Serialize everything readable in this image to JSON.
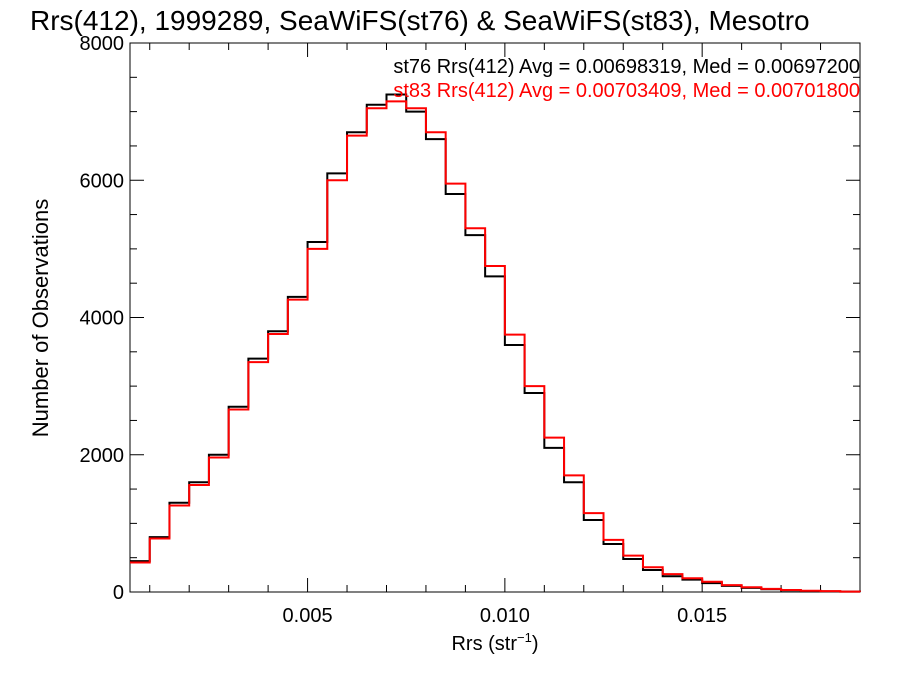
{
  "chart_data": {
    "type": "line",
    "title": "Rrs(412), 1999289, SeaWiFS(st76) & SeaWiFS(st83), Mesotro",
    "xlabel": "Rrs (str",
    "xlabel_sup": "−1",
    "xlabel_close": ")",
    "ylabel": "Number of Observations",
    "xlim": [
      0.0005,
      0.019
    ],
    "ylim": [
      0,
      8000
    ],
    "xticks": [
      0.005,
      0.01,
      0.015
    ],
    "xtick_labels": [
      "0.005",
      "0.010",
      "0.015"
    ],
    "yticks": [
      0,
      2000,
      4000,
      6000,
      8000
    ],
    "ytick_labels": [
      "0",
      "2000",
      "4000",
      "6000",
      "8000"
    ],
    "grid": false,
    "legend_position": "top-right",
    "annotations": [
      "st76 Rrs(412) Avg = 0.00698319, Med = 0.00697200",
      "st83 Rrs(412) Avg = 0.00703409, Med = 0.00701800"
    ],
    "series": [
      {
        "name": "st76",
        "color": "#000000",
        "x": [
          0.0005,
          0.001,
          0.0015,
          0.002,
          0.0025,
          0.003,
          0.0035,
          0.004,
          0.0045,
          0.005,
          0.0055,
          0.006,
          0.0065,
          0.007,
          0.0075,
          0.008,
          0.0085,
          0.009,
          0.0095,
          0.01,
          0.0105,
          0.011,
          0.0115,
          0.012,
          0.0125,
          0.013,
          0.0135,
          0.014,
          0.0145,
          0.015,
          0.0155,
          0.016,
          0.0165,
          0.017,
          0.0175,
          0.018,
          0.0185,
          0.019
        ],
        "values": [
          450,
          800,
          1300,
          1600,
          2000,
          2700,
          3400,
          3800,
          4300,
          5100,
          6100,
          6700,
          7100,
          7250,
          7000,
          6600,
          5800,
          5200,
          4600,
          3600,
          2900,
          2100,
          1600,
          1050,
          700,
          480,
          320,
          230,
          180,
          130,
          90,
          60,
          40,
          25,
          15,
          10,
          5,
          3
        ]
      },
      {
        "name": "st83",
        "color": "#ff0000",
        "x": [
          0.0005,
          0.001,
          0.0015,
          0.002,
          0.0025,
          0.003,
          0.0035,
          0.004,
          0.0045,
          0.005,
          0.0055,
          0.006,
          0.0065,
          0.007,
          0.0075,
          0.008,
          0.0085,
          0.009,
          0.0095,
          0.01,
          0.0105,
          0.011,
          0.0115,
          0.012,
          0.0125,
          0.013,
          0.0135,
          0.014,
          0.0145,
          0.015,
          0.0155,
          0.016,
          0.0165,
          0.017,
          0.0175,
          0.018,
          0.0185,
          0.019
        ],
        "values": [
          430,
          780,
          1260,
          1560,
          1960,
          2660,
          3350,
          3760,
          4260,
          5000,
          6000,
          6650,
          7050,
          7150,
          7050,
          6700,
          5950,
          5300,
          4750,
          3750,
          3000,
          2250,
          1700,
          1150,
          760,
          530,
          360,
          260,
          200,
          150,
          100,
          70,
          45,
          30,
          18,
          12,
          6,
          3
        ]
      }
    ]
  }
}
